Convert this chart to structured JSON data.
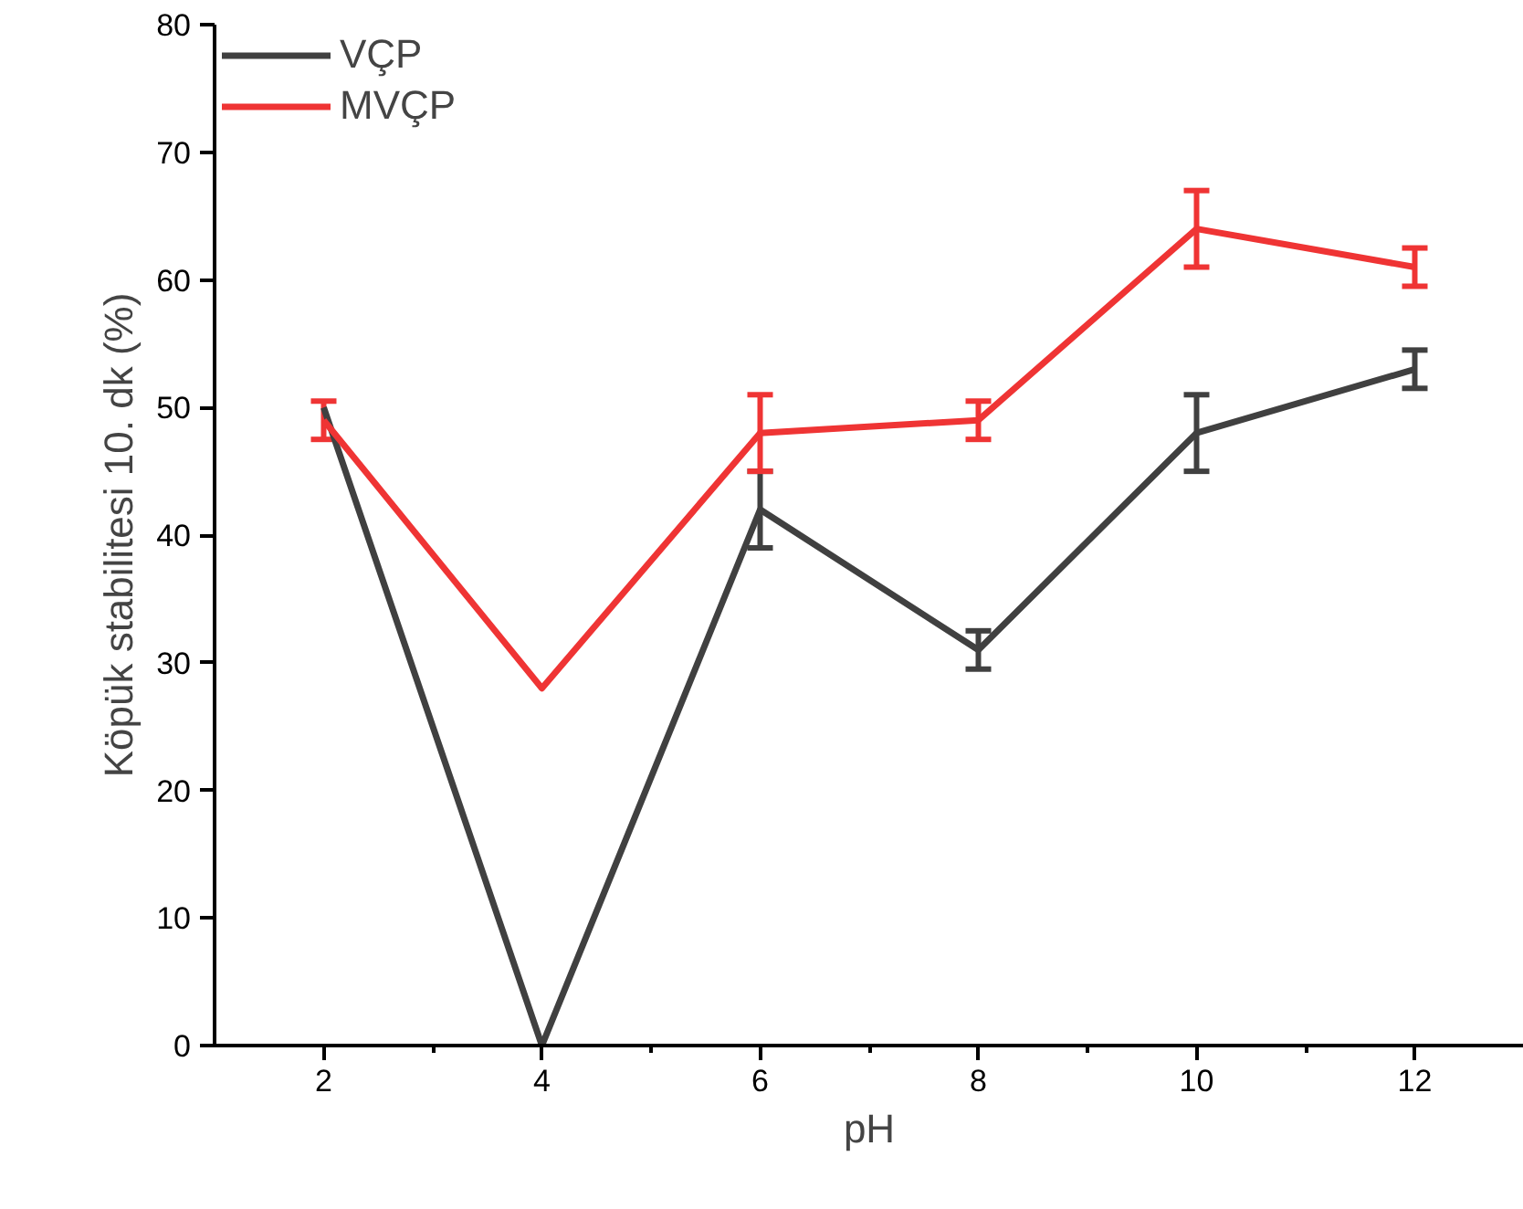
{
  "chart_data": {
    "type": "line",
    "xlabel": "pH",
    "ylabel": "Köpük stabilitesi 10. dk (%)",
    "x": [
      2,
      4,
      6,
      8,
      10,
      12
    ],
    "series": [
      {
        "name": "VÇP",
        "color": "#404040",
        "values": [
          50,
          0,
          42,
          31,
          48,
          53
        ],
        "errors": [
          null,
          null,
          3,
          1.5,
          3,
          1.5
        ]
      },
      {
        "name": "MVÇP",
        "color": "#ef3434",
        "values": [
          49,
          28,
          48,
          49,
          64,
          61
        ],
        "errors": [
          1.5,
          null,
          3,
          1.5,
          3,
          1.5
        ]
      }
    ],
    "xlim": [
      1,
      13
    ],
    "ylim": [
      0,
      80
    ],
    "xticks": [
      2,
      4,
      6,
      8,
      10,
      12
    ],
    "yticks": [
      0,
      10,
      20,
      30,
      40,
      50,
      60,
      70,
      80
    ],
    "grid": false,
    "legend": "top left",
    "marker": "none",
    "line_style": "solid"
  }
}
